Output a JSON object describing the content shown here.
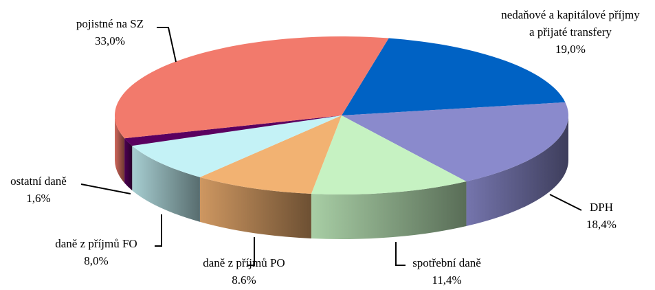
{
  "chart_data": {
    "type": "pie3d",
    "categories": [
      "nedaňové a kapitálové příjmy a přijaté transfery",
      "DPH",
      "spotřební daně",
      "daně z příjmů PO",
      "daně z příjmů FO",
      "ostatní daně",
      "pojistné na SZ"
    ],
    "values": [
      19.0,
      18.4,
      11.4,
      8.6,
      8.0,
      1.6,
      33.0
    ],
    "value_labels": [
      "19,0%",
      "18,4%",
      "11,4%",
      "8.6%",
      "8,0%",
      "1,6%",
      "33,0%"
    ],
    "colors": [
      "#0062c4",
      "#8a8acc",
      "#c6f2c2",
      "#f2b272",
      "#c4f2f6",
      "#5a0060",
      "#f27a6c"
    ]
  }
}
